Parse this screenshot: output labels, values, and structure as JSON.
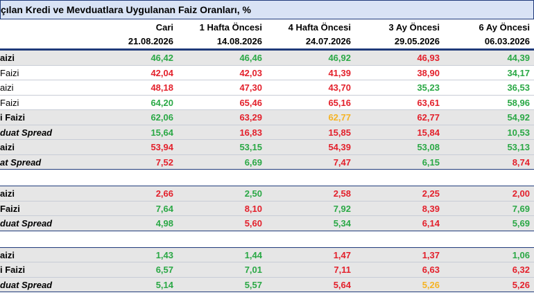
{
  "title": "çılan Kredi ve Mevduatlara Uygulanan Faiz Oranları, %",
  "columns": [
    {
      "name": "Cari",
      "date": "21.08.2026"
    },
    {
      "name": "1 Hafta Öncesi",
      "date": "14.08.2026"
    },
    {
      "name": "4 Hafta Öncesi",
      "date": "24.07.2026"
    },
    {
      "name": "3 Ay Öncesi",
      "date": "29.05.2026"
    },
    {
      "name": "6 Ay Öncesi",
      "date": "06.03.2026"
    }
  ],
  "sections": [
    {
      "rows": [
        {
          "label": "aizi",
          "shaded": true,
          "italic": false,
          "plain": false,
          "cells": [
            {
              "text": "46,42",
              "color": "#2aa845"
            },
            {
              "text": "46,46",
              "color": "#2aa845"
            },
            {
              "text": "46,92",
              "color": "#2aa845"
            },
            {
              "text": "46,93",
              "color": "#e3202b"
            },
            {
              "text": "44,39",
              "color": "#2aa845"
            }
          ]
        },
        {
          "label": " Faizi",
          "shaded": false,
          "italic": false,
          "plain": true,
          "cells": [
            {
              "text": "42,04",
              "color": "#e3202b"
            },
            {
              "text": "42,03",
              "color": "#e3202b"
            },
            {
              "text": "41,39",
              "color": "#e3202b"
            },
            {
              "text": "38,90",
              "color": "#e3202b"
            },
            {
              "text": "34,17",
              "color": "#2aa845"
            }
          ]
        },
        {
          "label": "aizi",
          "shaded": false,
          "italic": false,
          "plain": true,
          "cells": [
            {
              "text": "48,18",
              "color": "#e3202b"
            },
            {
              "text": "47,30",
              "color": "#e3202b"
            },
            {
              "text": "43,70",
              "color": "#e3202b"
            },
            {
              "text": "35,23",
              "color": "#2aa845"
            },
            {
              "text": "36,53",
              "color": "#2aa845"
            }
          ]
        },
        {
          "label": "Faizi",
          "shaded": false,
          "italic": false,
          "plain": true,
          "cells": [
            {
              "text": "64,20",
              "color": "#2aa845"
            },
            {
              "text": "65,46",
              "color": "#e3202b"
            },
            {
              "text": "65,16",
              "color": "#e3202b"
            },
            {
              "text": "63,61",
              "color": "#e3202b"
            },
            {
              "text": "58,96",
              "color": "#2aa845"
            }
          ]
        },
        {
          "label": "i Faizi",
          "shaded": true,
          "italic": false,
          "plain": false,
          "cells": [
            {
              "text": "62,06",
              "color": "#2aa845"
            },
            {
              "text": "63,29",
              "color": "#e3202b"
            },
            {
              "text": "62,77",
              "color": "#f5b324"
            },
            {
              "text": "62,77",
              "color": "#e3202b"
            },
            {
              "text": "54,92",
              "color": "#2aa845"
            }
          ]
        },
        {
          "label": "duat Spread",
          "shaded": true,
          "italic": true,
          "plain": false,
          "cells": [
            {
              "text": "15,64",
              "color": "#2aa845"
            },
            {
              "text": "16,83",
              "color": "#e3202b"
            },
            {
              "text": "15,85",
              "color": "#e3202b"
            },
            {
              "text": "15,84",
              "color": "#e3202b"
            },
            {
              "text": "10,53",
              "color": "#2aa845"
            }
          ]
        },
        {
          "label": "aizi",
          "shaded": true,
          "italic": false,
          "plain": false,
          "cells": [
            {
              "text": "53,94",
              "color": "#e3202b"
            },
            {
              "text": "53,15",
              "color": "#2aa845"
            },
            {
              "text": "54,39",
              "color": "#e3202b"
            },
            {
              "text": "53,08",
              "color": "#2aa845"
            },
            {
              "text": "53,13",
              "color": "#2aa845"
            }
          ]
        },
        {
          "label": "at Spread",
          "shaded": true,
          "italic": true,
          "plain": false,
          "cells": [
            {
              "text": "7,52",
              "color": "#e3202b"
            },
            {
              "text": "6,69",
              "color": "#2aa845"
            },
            {
              "text": "7,47",
              "color": "#e3202b"
            },
            {
              "text": "6,15",
              "color": "#2aa845"
            },
            {
              "text": "8,74",
              "color": "#e3202b"
            }
          ]
        }
      ]
    },
    {
      "rows": [
        {
          "label": "aizi",
          "shaded": true,
          "italic": false,
          "plain": false,
          "cells": [
            {
              "text": "2,66",
              "color": "#e3202b"
            },
            {
              "text": "2,50",
              "color": "#2aa845"
            },
            {
              "text": "2,58",
              "color": "#e3202b"
            },
            {
              "text": "2,25",
              "color": "#e3202b"
            },
            {
              "text": "2,00",
              "color": "#e3202b"
            }
          ]
        },
        {
          "label": " Faizi",
          "shaded": true,
          "italic": false,
          "plain": false,
          "cells": [
            {
              "text": "7,64",
              "color": "#2aa845"
            },
            {
              "text": "8,10",
              "color": "#e3202b"
            },
            {
              "text": "7,92",
              "color": "#2aa845"
            },
            {
              "text": "8,39",
              "color": "#e3202b"
            },
            {
              "text": "7,69",
              "color": "#2aa845"
            }
          ]
        },
        {
          "label": "duat Spread",
          "shaded": true,
          "italic": true,
          "plain": false,
          "cells": [
            {
              "text": "4,98",
              "color": "#2aa845"
            },
            {
              "text": "5,60",
              "color": "#e3202b"
            },
            {
              "text": "5,34",
              "color": "#2aa845"
            },
            {
              "text": "6,14",
              "color": "#e3202b"
            },
            {
              "text": "5,69",
              "color": "#2aa845"
            }
          ]
        }
      ]
    },
    {
      "rows": [
        {
          "label": "aizi",
          "shaded": true,
          "italic": false,
          "plain": false,
          "cells": [
            {
              "text": "1,43",
              "color": "#2aa845"
            },
            {
              "text": "1,44",
              "color": "#2aa845"
            },
            {
              "text": "1,47",
              "color": "#e3202b"
            },
            {
              "text": "1,37",
              "color": "#e3202b"
            },
            {
              "text": "1,06",
              "color": "#2aa845"
            }
          ]
        },
        {
          "label": "i Faizi",
          "shaded": true,
          "italic": false,
          "plain": false,
          "cells": [
            {
              "text": "6,57",
              "color": "#2aa845"
            },
            {
              "text": "7,01",
              "color": "#2aa845"
            },
            {
              "text": "7,11",
              "color": "#e3202b"
            },
            {
              "text": "6,63",
              "color": "#e3202b"
            },
            {
              "text": "6,32",
              "color": "#e3202b"
            }
          ]
        },
        {
          "label": "duat Spread",
          "shaded": true,
          "italic": true,
          "plain": false,
          "cells": [
            {
              "text": "5,14",
              "color": "#2aa845"
            },
            {
              "text": "5,57",
              "color": "#2aa845"
            },
            {
              "text": "5,64",
              "color": "#e3202b"
            },
            {
              "text": "5,26",
              "color": "#f5b324"
            },
            {
              "text": "5,26",
              "color": "#e3202b"
            }
          ]
        }
      ]
    }
  ]
}
